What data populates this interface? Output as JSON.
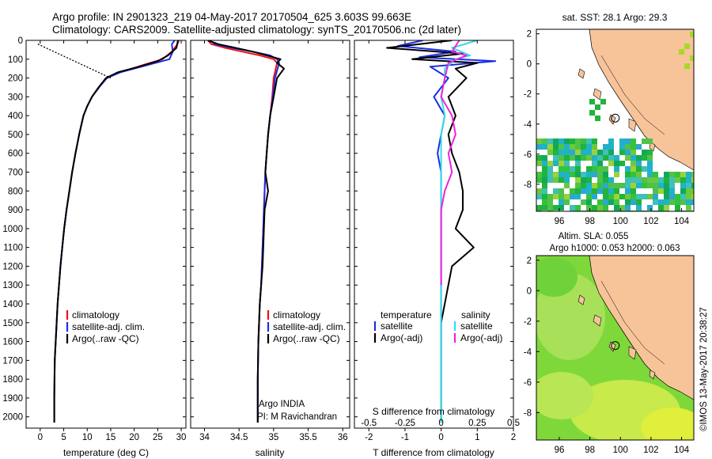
{
  "header": {
    "line1": "Argo profile: IN 2901323_219 04-May-2017 20170504_625 3.603S 99.663E",
    "line2": "Climatology: CARS2009. Satellite-adjusted climatology: synTS_20170506.nc (2d later)"
  },
  "colors": {
    "climatology": "#ee1111",
    "satellite": "#1a2ee6",
    "argo": "#000000",
    "satellite_diff": "#33dde6",
    "argo_s_diff": "#ee22dd",
    "land": "#f7c49a",
    "frame": "#000000"
  },
  "chart_data": [
    {
      "type": "line",
      "xlabel": "temperature (deg C)",
      "xlim": [
        -3,
        31
      ],
      "xticks": [
        0,
        5,
        10,
        15,
        20,
        25,
        30
      ],
      "ylim": [
        2060,
        0
      ],
      "yticks": [
        0,
        100,
        200,
        300,
        400,
        500,
        600,
        700,
        800,
        900,
        1000,
        1100,
        1200,
        1300,
        1400,
        1500,
        1600,
        1700,
        1800,
        1900,
        2000
      ],
      "legend": [
        "climatology",
        "satellite-adj. clim.",
        "Argo(..raw -QC)"
      ],
      "series": [
        {
          "name": "climatology",
          "color": "#ee1111",
          "x": [
            29.5,
            29.2,
            28.0,
            26.0,
            22.0,
            17.0,
            14.0,
            12.5,
            11.0,
            10.0,
            9.2,
            8.3,
            7.5,
            6.8,
            6.2,
            5.6,
            5.1,
            4.7,
            4.3,
            4.0,
            3.7,
            3.5,
            3.3,
            3.1,
            3.0,
            3.0
          ],
          "y": [
            0,
            20,
            60,
            100,
            130,
            170,
            200,
            250,
            300,
            350,
            400,
            500,
            600,
            700,
            800,
            900,
            1000,
            1100,
            1200,
            1300,
            1400,
            1500,
            1600,
            1700,
            1900,
            2030
          ]
        },
        {
          "name": "satellite-adj. clim.",
          "color": "#1a2ee6",
          "x": [
            28.6,
            28.0,
            28.2,
            27.5,
            23.0,
            17.0,
            14.2,
            12.5,
            11.0,
            10.0,
            9.2,
            8.3,
            7.5,
            6.8,
            6.2,
            5.6,
            5.1,
            4.7,
            4.3,
            4.0,
            3.7,
            3.5,
            3.3,
            3.1,
            3.0,
            3.0
          ],
          "y": [
            0,
            20,
            60,
            100,
            130,
            170,
            200,
            250,
            300,
            350,
            400,
            500,
            600,
            700,
            800,
            900,
            1000,
            1100,
            1200,
            1300,
            1400,
            1500,
            1600,
            1700,
            1900,
            2030
          ]
        },
        {
          "name": "Argo(..raw -QC)",
          "color": "#000000",
          "x": [
            29.3,
            29.0,
            27.2,
            25.0,
            21.0,
            16.5,
            14.0,
            12.4,
            11.0,
            10.0,
            9.2,
            8.3,
            7.5,
            6.8,
            6.2,
            5.6,
            5.1,
            4.7,
            4.3,
            4.0,
            3.7,
            3.5,
            3.3,
            3.1,
            3.0,
            3.0
          ],
          "y": [
            0,
            40,
            80,
            110,
            140,
            170,
            200,
            250,
            300,
            350,
            400,
            500,
            600,
            700,
            800,
            900,
            1000,
            1100,
            1200,
            1300,
            1400,
            1500,
            1600,
            1700,
            1900,
            2030
          ]
        }
      ],
      "annotation_dotted": {
        "x": [
          -0.5,
          15.0
        ],
        "y": [
          20,
          200
        ]
      }
    },
    {
      "type": "line",
      "xlabel": "salinity",
      "xlim": [
        33.8,
        36.1
      ],
      "xticks": [
        34,
        34.5,
        35,
        35.5,
        36
      ],
      "ylim": [
        2060,
        0
      ],
      "legend": [
        "climatology",
        "satellite-adj. clim.",
        "Argo(..raw -QC)"
      ],
      "texts": [
        "Argo INDIA",
        "PI: M Ravichandran"
      ],
      "series": [
        {
          "name": "climatology",
          "color": "#ee1111",
          "x": [
            34.05,
            34.1,
            34.3,
            34.55,
            34.8,
            35.0,
            35.05,
            35.0,
            34.98,
            34.95,
            34.92,
            34.9,
            34.88,
            34.87,
            34.86,
            34.85,
            34.84,
            34.83,
            34.82,
            34.8,
            34.79,
            34.78,
            34.77,
            34.77
          ],
          "y": [
            0,
            20,
            40,
            60,
            80,
            100,
            120,
            200,
            300,
            400,
            500,
            600,
            700,
            800,
            900,
            1000,
            1100,
            1200,
            1300,
            1400,
            1500,
            1600,
            1800,
            2030
          ]
        },
        {
          "name": "satellite-adj. clim.",
          "color": "#1a2ee6",
          "x": [
            34.08,
            34.15,
            34.4,
            34.7,
            34.95,
            35.05,
            35.08,
            35.02,
            34.99,
            34.95,
            34.92,
            34.9,
            34.88,
            34.87,
            34.86,
            34.85,
            34.84,
            34.83,
            34.82,
            34.8,
            34.79,
            34.78,
            34.77,
            34.77
          ],
          "y": [
            0,
            20,
            40,
            60,
            80,
            100,
            120,
            200,
            300,
            400,
            500,
            600,
            700,
            800,
            900,
            1000,
            1100,
            1200,
            1300,
            1400,
            1500,
            1600,
            1800,
            2030
          ]
        },
        {
          "name": "Argo(..raw -QC)",
          "color": "#000000",
          "x": [
            34.05,
            34.2,
            34.45,
            34.7,
            34.9,
            35.1,
            35.05,
            35.15,
            35.05,
            35.0,
            34.95,
            34.92,
            34.9,
            34.88,
            34.92,
            34.87,
            34.86,
            34.85,
            34.84,
            34.82,
            34.8,
            34.79,
            34.78,
            34.77,
            34.77
          ],
          "y": [
            0,
            20,
            40,
            60,
            80,
            100,
            120,
            150,
            200,
            300,
            400,
            500,
            600,
            700,
            800,
            900,
            1000,
            1100,
            1200,
            1300,
            1400,
            1500,
            1600,
            1800,
            2030
          ]
        }
      ]
    },
    {
      "type": "line",
      "xlabel": "T difference from climatology",
      "xlabel_top": "S difference from climatology",
      "xlim": [
        -2.4,
        2.0
      ],
      "xticks_bottom": [
        "-2",
        "-1",
        "0",
        "1",
        "2"
      ],
      "xticks_bottom_values": [
        -2,
        -1,
        0,
        1,
        2
      ],
      "xticks_top": [
        "-0.5",
        "-0.25",
        "0",
        "0.25",
        "0.5"
      ],
      "xticks_top_positions_as_T": [
        -2,
        -1,
        0,
        1,
        2
      ],
      "ylim": [
        2060,
        0
      ],
      "legend_temperature_title": "temperature",
      "legend_salinity_title": "salinity",
      "legend_temperature": [
        "satellite",
        "Argo(-adj)"
      ],
      "legend_salinity": [
        "satellite",
        "Argo(-adj)"
      ],
      "series": [
        {
          "name": "temperature satellite",
          "color": "#1a2ee6",
          "x": [
            -0.5,
            -1.2,
            0.4,
            -0.6,
            1.5,
            -0.3,
            0.2,
            -0.2,
            0.1,
            0.0,
            -0.1,
            0.0,
            0.0,
            0.0,
            0.0,
            0.0,
            0.0,
            0.0,
            0.0,
            0.0,
            0.0
          ],
          "y": [
            0,
            30,
            60,
            90,
            110,
            140,
            200,
            300,
            400,
            500,
            600,
            700,
            800,
            900,
            1000,
            1200,
            1400,
            1600,
            1800,
            1900,
            2030
          ]
        },
        {
          "name": "temperature Argo(-adj)",
          "color": "#000000",
          "x": [
            0.3,
            -1.5,
            0.6,
            -0.8,
            1.0,
            0.4,
            0.7,
            0.2,
            0.4,
            0.2,
            0.3,
            0.5,
            0.6,
            0.6,
            0.4,
            0.9,
            0.3,
            0.0,
            0.0,
            0.0,
            0.0
          ],
          "y": [
            0,
            40,
            70,
            100,
            120,
            150,
            200,
            300,
            400,
            500,
            600,
            700,
            800,
            900,
            1000,
            1100,
            1200,
            1500,
            1700,
            1900,
            2030
          ]
        },
        {
          "name": "salinity satellite",
          "color": "#33dde6",
          "x": [
            1.0,
            0.3,
            0.8,
            0.4,
            0.1,
            0.1,
            0.0,
            0.1,
            0.0,
            0.0,
            0.0,
            0.0,
            0.0,
            0.0,
            0.0
          ],
          "y": [
            0,
            40,
            80,
            100,
            150,
            200,
            300,
            400,
            500,
            600,
            700,
            900,
            1200,
            1600,
            2030
          ]
        },
        {
          "name": "salinity Argo(-adj)",
          "color": "#ee22dd",
          "x": [
            0.5,
            0.3,
            0.7,
            0.2,
            0.1,
            0.0,
            0.3,
            0.4,
            0.2,
            0.3,
            0.1,
            0.0,
            0.0,
            0.0
          ],
          "y": [
            0,
            60,
            80,
            120,
            200,
            300,
            400,
            500,
            600,
            700,
            800,
            900,
            1100,
            1300
          ]
        }
      ]
    },
    {
      "type": "heatmap",
      "title": "sat. SST: 28.1  Argo: 29.3",
      "xlim": [
        94.5,
        104.8
      ],
      "ylim": [
        -9.8,
        2.3
      ],
      "xticks": [
        96,
        98,
        100,
        102,
        104
      ],
      "yticks": [
        2,
        0,
        -2,
        -4,
        -6,
        -8
      ],
      "argo_position": {
        "lon": 99.663,
        "lat": -3.603
      }
    },
    {
      "type": "heatmap",
      "title_line1": "Altim. SLA: 0.055",
      "title_line2": "Argo h1000: 0.053  h2000: 0.063",
      "xlim": [
        94.5,
        104.8
      ],
      "ylim": [
        -9.8,
        2.3
      ],
      "xticks": [
        96,
        98,
        100,
        102,
        104
      ],
      "yticks": [
        2,
        0,
        -2,
        -4,
        -6,
        -8
      ],
      "argo_position": {
        "lon": 99.663,
        "lat": -3.603
      }
    }
  ],
  "watermark": "©IMOS 13-May-2017 20:38:27"
}
